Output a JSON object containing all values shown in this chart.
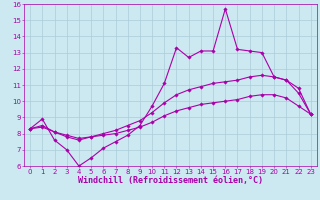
{
  "title": "",
  "xlabel": "Windchill (Refroidissement éolien,°C)",
  "ylabel": "",
  "xlim": [
    -0.5,
    23.5
  ],
  "ylim": [
    6,
    16
  ],
  "xticks": [
    0,
    1,
    2,
    3,
    4,
    5,
    6,
    7,
    8,
    9,
    10,
    11,
    12,
    13,
    14,
    15,
    16,
    17,
    18,
    19,
    20,
    21,
    22,
    23
  ],
  "yticks": [
    6,
    7,
    8,
    9,
    10,
    11,
    12,
    13,
    14,
    15,
    16
  ],
  "bg_color": "#cce8f0",
  "grid_color": "#aaccd8",
  "line_color": "#aa00aa",
  "series1_x": [
    0,
    1,
    2,
    3,
    4,
    5,
    6,
    7,
    8,
    9,
    10,
    11,
    12,
    13,
    14,
    15,
    16,
    17,
    18,
    19,
    20,
    21,
    22,
    23
  ],
  "series1_y": [
    8.3,
    8.9,
    7.6,
    7.0,
    6.0,
    6.5,
    7.1,
    7.5,
    7.9,
    8.5,
    9.7,
    11.1,
    13.3,
    12.7,
    13.1,
    13.1,
    15.7,
    13.2,
    13.1,
    13.0,
    11.5,
    11.3,
    10.8,
    9.2
  ],
  "series2_x": [
    0,
    1,
    2,
    3,
    4,
    5,
    6,
    7,
    8,
    9,
    10,
    11,
    12,
    13,
    14,
    15,
    16,
    17,
    18,
    19,
    20,
    21,
    22,
    23
  ],
  "series2_y": [
    8.3,
    8.5,
    8.1,
    7.8,
    7.6,
    7.8,
    8.0,
    8.2,
    8.5,
    8.8,
    9.3,
    9.9,
    10.4,
    10.7,
    10.9,
    11.1,
    11.2,
    11.3,
    11.5,
    11.6,
    11.5,
    11.3,
    10.5,
    9.2
  ],
  "series3_x": [
    0,
    1,
    2,
    3,
    4,
    5,
    6,
    7,
    8,
    9,
    10,
    11,
    12,
    13,
    14,
    15,
    16,
    17,
    18,
    19,
    20,
    21,
    22,
    23
  ],
  "series3_y": [
    8.3,
    8.4,
    8.1,
    7.9,
    7.7,
    7.8,
    7.9,
    8.0,
    8.2,
    8.4,
    8.7,
    9.1,
    9.4,
    9.6,
    9.8,
    9.9,
    10.0,
    10.1,
    10.3,
    10.4,
    10.4,
    10.2,
    9.7,
    9.2
  ],
  "marker": "D",
  "markersize": 1.8,
  "linewidth": 0.8,
  "tick_fontsize": 5.0,
  "label_fontsize": 6.0
}
